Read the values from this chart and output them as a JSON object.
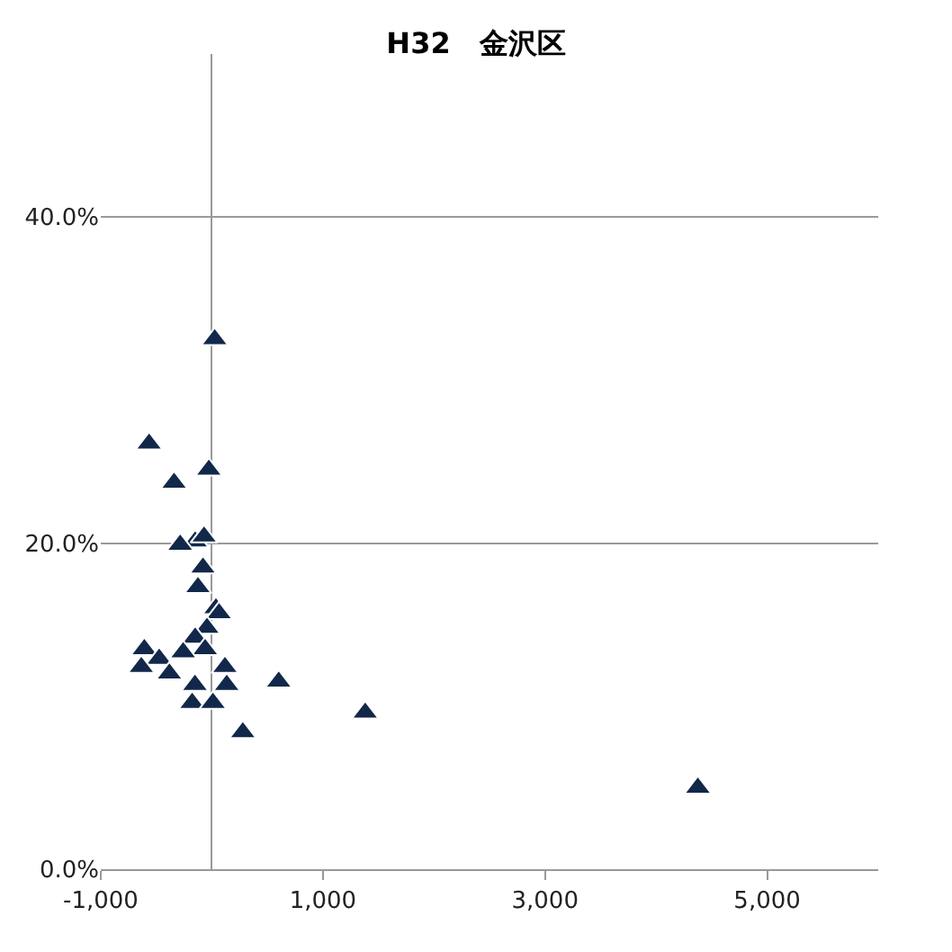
{
  "chart_data": {
    "type": "scatter",
    "title": "H32　金沢区",
    "x": [
      26,
      -565,
      -340,
      -27,
      -150,
      -70,
      -285,
      -80,
      -125,
      37,
      65,
      -44,
      -150,
      -60,
      -258,
      -608,
      -474,
      -635,
      -382,
      118,
      134,
      -152,
      -177,
      10,
      602,
      1381,
      279,
      4376
    ],
    "values": [
      32.5,
      26.1,
      23.7,
      24.5,
      20.1,
      20.4,
      19.9,
      18.5,
      17.3,
      16.0,
      15.7,
      14.8,
      14.2,
      13.5,
      13.3,
      13.5,
      12.9,
      12.4,
      12.0,
      12.4,
      11.3,
      11.3,
      10.2,
      10.2,
      11.5,
      9.6,
      8.4,
      5.0
    ],
    "color": "#12284a",
    "marker": "triangle",
    "xlim": [
      -1000,
      6000
    ],
    "xticks": [
      {
        "value": -1000,
        "label": "-1,000"
      },
      {
        "value": 1000,
        "label": "1,000"
      },
      {
        "value": 3000,
        "label": "3,000"
      },
      {
        "value": 5000,
        "label": "5,000"
      }
    ],
    "ylim": [
      0,
      50
    ],
    "yticks": [
      {
        "value": 0,
        "label": "0.0%"
      },
      {
        "value": 20,
        "label": "20.0%"
      },
      {
        "value": 40,
        "label": "40.0%"
      }
    ],
    "grid": "y"
  }
}
